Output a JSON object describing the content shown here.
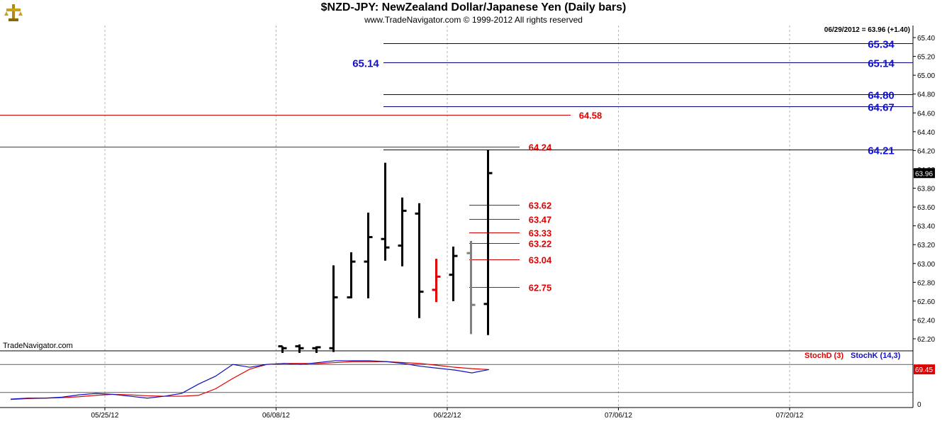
{
  "header": {
    "title": "$NZD-JPY:  NewZealand Dollar/Japanese Yen  (Daily bars)",
    "subtitle": "www.TradeNavigator.com © 1999-2012 All rights reserved",
    "readout": "06/29/2012 = 63.96 (+1.40)",
    "watermark": "TradeNavigator.com",
    "logo_icon": "trade-navigator-logo-icon"
  },
  "colors": {
    "bar": "#000000",
    "bar_red": "#e00000",
    "bar_gray": "#808080",
    "level_blue": "#000080",
    "level_red": "#d00000",
    "label_blue": "#1010d0",
    "label_red": "#e00000",
    "grid": "#b4b4b4",
    "stoch_d": "#e00000",
    "stoch_k": "#1010c0"
  },
  "chart_data": [
    {
      "type": "ohlc",
      "title": "$NZD-JPY:  NewZealand Dollar/Japanese Yen  (Daily bars)",
      "ylim": [
        62.05,
        65.45
      ],
      "y_ticks": [
        "65.40",
        "65.20",
        "65.00",
        "64.80",
        "64.60",
        "64.40",
        "64.20",
        "64.00",
        "63.80",
        "63.60",
        "63.40",
        "63.20",
        "63.00",
        "62.80",
        "62.60",
        "62.40",
        "62.20"
      ],
      "x_ticks": [
        {
          "label": "05/25/12",
          "i": 3
        },
        {
          "label": "06/08/12",
          "i": 13
        },
        {
          "label": "06/22/12",
          "i": 23
        },
        {
          "label": "07/06/12",
          "i": 33
        },
        {
          "label": "07/20/12",
          "i": 43
        }
      ],
      "grid": true,
      "last_price_badge": "63.96",
      "bars": [
        {
          "date": "06/12/12",
          "o": 62.12,
          "h": 62.12,
          "l": 62.05,
          "c": 62.1,
          "color": "black"
        },
        {
          "date": "06/13/12",
          "o": 62.12,
          "h": 62.14,
          "l": 62.05,
          "c": 62.1,
          "color": "black"
        },
        {
          "date": "06/14/12",
          "o": 62.1,
          "h": 62.12,
          "l": 62.05,
          "c": 62.11,
          "color": "black"
        },
        {
          "date": "06/15/12",
          "o": 62.1,
          "h": 62.98,
          "l": 62.06,
          "c": 62.64,
          "color": "black"
        },
        {
          "date": "06/18/12",
          "o": 62.64,
          "h": 63.12,
          "l": 62.63,
          "c": 63.02,
          "color": "black"
        },
        {
          "date": "06/19/12",
          "o": 63.02,
          "h": 63.54,
          "l": 62.63,
          "c": 63.28,
          "color": "black"
        },
        {
          "date": "06/20/12",
          "o": 63.26,
          "h": 64.07,
          "l": 63.03,
          "c": 63.17,
          "color": "black"
        },
        {
          "date": "06/21/12",
          "o": 63.19,
          "h": 63.7,
          "l": 62.97,
          "c": 63.56,
          "color": "black"
        },
        {
          "date": "06/22/12",
          "o": 63.53,
          "h": 63.64,
          "l": 62.42,
          "c": 62.7,
          "color": "black"
        },
        {
          "date": "06/25/12",
          "o": 62.72,
          "h": 63.05,
          "l": 62.59,
          "c": 62.86,
          "color": "red"
        },
        {
          "date": "06/26/12",
          "o": 62.88,
          "h": 63.18,
          "l": 62.6,
          "c": 63.08,
          "color": "black"
        },
        {
          "date": "06/27/12",
          "o": 63.11,
          "h": 63.24,
          "l": 62.25,
          "c": 62.56,
          "color": "gray"
        },
        {
          "date": "06/28/12",
          "o": 62.57,
          "h": 64.21,
          "l": 62.24,
          "c": 63.96,
          "color": "black"
        }
      ],
      "levels_blue": [
        {
          "value": 65.34,
          "label": "65.34"
        },
        {
          "value": 65.14,
          "label": "65.14",
          "left_label": "65.14"
        },
        {
          "value": 64.8,
          "label": "64.80"
        },
        {
          "value": 64.67,
          "label": "64.67"
        },
        {
          "value": 64.21,
          "label": "64.21"
        }
      ],
      "levels_red": [
        {
          "value": 64.58,
          "label": "64.58",
          "full": true
        },
        {
          "value": 64.24,
          "label": "64.24",
          "full": true
        },
        {
          "value": 63.62,
          "label": "63.62"
        },
        {
          "value": 63.47,
          "label": "63.47"
        },
        {
          "value": 63.33,
          "label": "63.33"
        },
        {
          "value": 63.22,
          "label": "63.22"
        },
        {
          "value": 63.04,
          "label": "63.04"
        },
        {
          "value": 62.75,
          "label": "62.75"
        }
      ]
    },
    {
      "type": "line",
      "legend": [
        "StochD (3)",
        "StochK (14,3)"
      ],
      "ylim": [
        0,
        100
      ],
      "y_ticks": [
        "0"
      ],
      "reference_lines": [
        20,
        80
      ],
      "last_value_badge": "69.45",
      "series": [
        {
          "name": "StochD (3)",
          "values": [
            5,
            7,
            8,
            9,
            11,
            14,
            16,
            15,
            13,
            12,
            12,
            14,
            28,
            50,
            70,
            80,
            82,
            82,
            82,
            84,
            86,
            86,
            86,
            84,
            82,
            78,
            74,
            71,
            69
          ]
        },
        {
          "name": "StochK (14,3)",
          "values": [
            6,
            8,
            8,
            10,
            15,
            18,
            16,
            12,
            8,
            12,
            18,
            38,
            55,
            80,
            74,
            80,
            82,
            80,
            84,
            88,
            88,
            88,
            86,
            82,
            76,
            72,
            68,
            62,
            69
          ]
        }
      ]
    }
  ],
  "stoch_x_offset": 0
}
